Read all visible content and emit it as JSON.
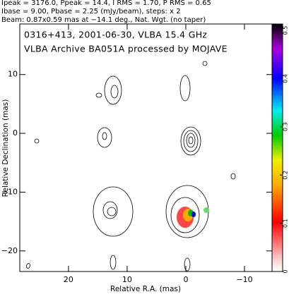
{
  "chart_data": {
    "type": "contour",
    "header": [
      "Ipeak = 3176.0, Ppeak = 14.4, I RMS = 1.70, P RMS = 0.65",
      "Ibase = 9.00, Pbase = 2.25 (mJy/beam), steps: x 2",
      "Beam: 0.87x0.59 mas at −14.1 deg., Nat. Wgt. (no taper)"
    ],
    "title": "0316+413, 2001-06-30, VLBA 15.4 GHz",
    "subtitle": "VLBA Archive BA051A processed by MOJAVE",
    "x_label": "Relative R.A. (mas)",
    "y_label": "Relative Declination (mas)",
    "xlim": [
      28.3,
      -14.7
    ],
    "xticks": [
      20,
      10,
      0,
      {
        "value": -10,
        "label": "−10"
      }
    ],
    "ylim": [
      -23.5,
      18.6
    ],
    "yticks": [
      10,
      0,
      {
        "value": -10,
        "label": "−10"
      },
      {
        "value": -20,
        "label": "−20"
      }
    ],
    "clim": [
      0,
      0.5
    ],
    "cticks": [
      0,
      0.1,
      0.2,
      0.3,
      0.4,
      0.5
    ]
  }
}
